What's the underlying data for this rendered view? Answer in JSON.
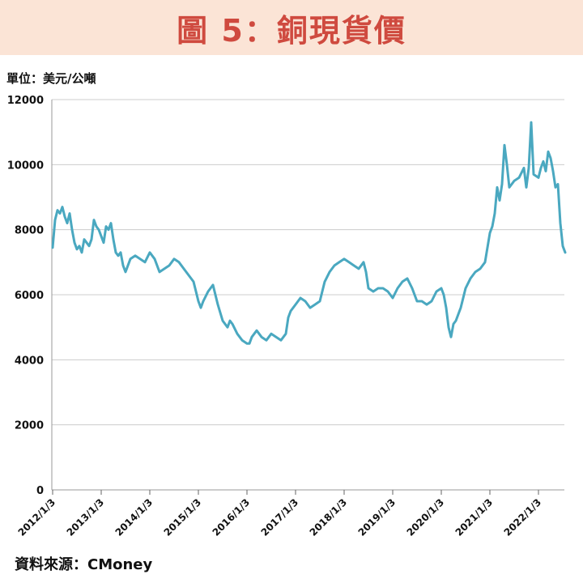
{
  "header": {
    "title": "圖 5：銅現貨價"
  },
  "unit_label": "單位：美元/公噸",
  "source_label": "資料來源：CMoney",
  "colors": {
    "line": "#4aa8c0",
    "title": "#cf4a3f",
    "title_bg": "#fbe4d6",
    "grid": "#cccccc"
  },
  "chart_data": {
    "type": "line",
    "title": "圖 5：銅現貨價",
    "ylabel": "單位：美元/公噸",
    "ylim": [
      0,
      12000
    ],
    "yticks": [
      0,
      2000,
      4000,
      6000,
      8000,
      10000,
      12000
    ],
    "xticks": [
      "2012/1/3",
      "2013/1/3",
      "2014/1/3",
      "2015/1/3",
      "2016/1/3",
      "2017/1/3",
      "2018/1/3",
      "2019/1/3",
      "2020/1/3",
      "2021/1/3",
      "2022/1/3"
    ],
    "grid": true,
    "series": [
      {
        "x": [
          2012.0,
          2012.05,
          2012.1,
          2012.15,
          2012.2,
          2012.25,
          2012.3,
          2012.35,
          2012.4,
          2012.45,
          2012.5,
          2012.55,
          2012.6,
          2012.65,
          2012.7,
          2012.75,
          2012.8,
          2012.85,
          2012.9,
          2012.95,
          2013.0,
          2013.05,
          2013.1,
          2013.15,
          2013.2,
          2013.25,
          2013.3,
          2013.35,
          2013.4,
          2013.45,
          2013.5,
          2013.6,
          2013.7,
          2013.8,
          2013.9,
          2014.0,
          2014.1,
          2014.2,
          2014.3,
          2014.4,
          2014.5,
          2014.6,
          2014.7,
          2014.8,
          2014.9,
          2015.0,
          2015.05,
          2015.1,
          2015.2,
          2015.3,
          2015.35,
          2015.4,
          2015.5,
          2015.6,
          2015.65,
          2015.7,
          2015.8,
          2015.9,
          2016.0,
          2016.05,
          2016.1,
          2016.2,
          2016.3,
          2016.4,
          2016.5,
          2016.6,
          2016.7,
          2016.8,
          2016.85,
          2016.9,
          2017.0,
          2017.1,
          2017.2,
          2017.3,
          2017.4,
          2017.5,
          2017.6,
          2017.7,
          2017.8,
          2017.9,
          2018.0,
          2018.1,
          2018.2,
          2018.3,
          2018.4,
          2018.45,
          2018.5,
          2018.6,
          2018.7,
          2018.8,
          2018.9,
          2019.0,
          2019.1,
          2019.2,
          2019.3,
          2019.4,
          2019.5,
          2019.6,
          2019.7,
          2019.8,
          2019.9,
          2020.0,
          2020.05,
          2020.1,
          2020.15,
          2020.2,
          2020.25,
          2020.3,
          2020.4,
          2020.5,
          2020.6,
          2020.7,
          2020.8,
          2020.9,
          2021.0,
          2021.05,
          2021.1,
          2021.15,
          2021.2,
          2021.25,
          2021.3,
          2021.35,
          2021.4,
          2021.5,
          2021.6,
          2021.7,
          2021.75,
          2021.8,
          2021.85,
          2021.9,
          2022.0,
          2022.05,
          2022.1,
          2022.15,
          2022.2,
          2022.25,
          2022.3,
          2022.35,
          2022.4,
          2022.45,
          2022.5,
          2022.55
        ],
        "values": [
          7450,
          8300,
          8600,
          8500,
          8700,
          8400,
          8200,
          8500,
          8000,
          7600,
          7400,
          7500,
          7300,
          7700,
          7600,
          7500,
          7700,
          8300,
          8100,
          8000,
          7800,
          7600,
          8100,
          8000,
          8200,
          7700,
          7300,
          7200,
          7300,
          6900,
          6700,
          7100,
          7200,
          7100,
          7000,
          7300,
          7100,
          6700,
          6800,
          6900,
          7100,
          7000,
          6800,
          6600,
          6400,
          5800,
          5600,
          5800,
          6100,
          6300,
          6000,
          5700,
          5200,
          5000,
          5200,
          5100,
          4800,
          4600,
          4500,
          4500,
          4700,
          4900,
          4700,
          4600,
          4800,
          4700,
          4600,
          4800,
          5300,
          5500,
          5700,
          5900,
          5800,
          5600,
          5700,
          5800,
          6400,
          6700,
          6900,
          7000,
          7100,
          7000,
          6900,
          6800,
          7000,
          6700,
          6200,
          6100,
          6200,
          6200,
          6100,
          5900,
          6200,
          6400,
          6500,
          6200,
          5800,
          5800,
          5700,
          5800,
          6100,
          6200,
          6000,
          5600,
          5000,
          4700,
          5100,
          5200,
          5600,
          6200,
          6500,
          6700,
          6800,
          7000,
          7900,
          8100,
          8500,
          9300,
          8900,
          9400,
          10600,
          10000,
          9300,
          9500,
          9600,
          9900,
          9300,
          9900,
          11300,
          9700,
          9600,
          9900,
          10100,
          9800,
          10400,
          10200,
          9800,
          9300,
          9400,
          8200,
          7500,
          7300
        ]
      }
    ]
  }
}
